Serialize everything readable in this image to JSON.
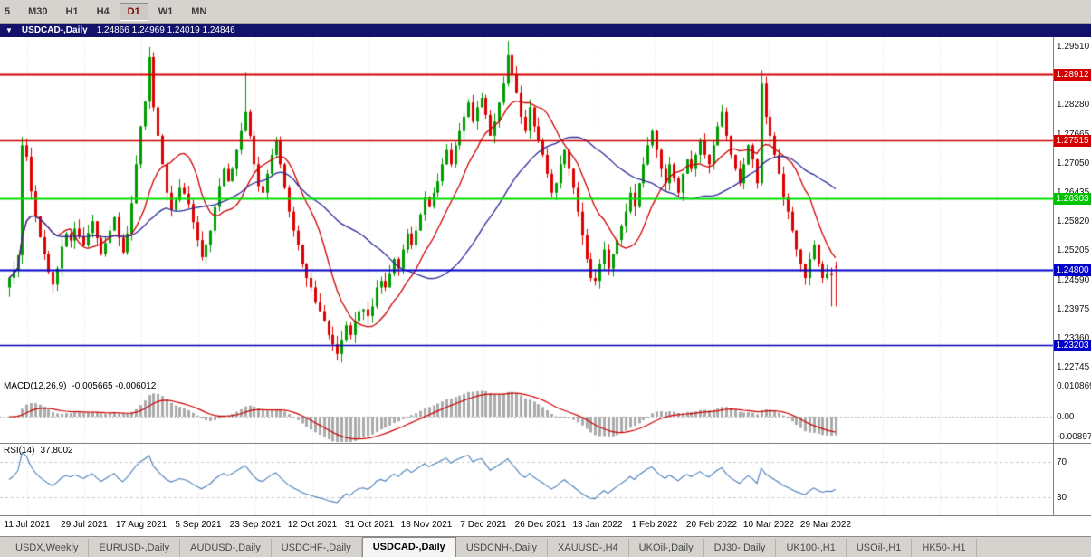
{
  "toolbar": {
    "timeframes": [
      {
        "label": "5",
        "active": false
      },
      {
        "label": "M30",
        "active": false
      },
      {
        "label": "H1",
        "active": false
      },
      {
        "label": "H4",
        "active": false
      },
      {
        "label": "D1",
        "active": true
      },
      {
        "label": "W1",
        "active": false
      },
      {
        "label": "MN",
        "active": false
      }
    ]
  },
  "chart_window": {
    "collapse_icon": "▼",
    "title": "USDCAD-,Daily",
    "ohlc_text": "1.24866 1.24969 1.24019 1.24846"
  },
  "price_axis": {
    "plain_labels": [
      "1.29510",
      "1.28280",
      "1.27665",
      "1.27050",
      "1.26435",
      "1.25820",
      "1.25205",
      "1.24590",
      "1.23975",
      "1.23360",
      "1.22745"
    ],
    "tagged_labels": [
      {
        "text": "1.28912",
        "color": "#d40000"
      },
      {
        "text": "1.27515",
        "color": "#d40000"
      },
      {
        "text": "1.26303",
        "color": "#00c400"
      },
      {
        "text": "1.24800",
        "color": "#0000c8"
      },
      {
        "text": "1.23203",
        "color": "#0000c8"
      }
    ]
  },
  "indicators": {
    "macd": {
      "name": "MACD(12,26,9)",
      "values": "-0.005665 -0.006012",
      "axis_labels": [
        "0.010869",
        "0.00",
        "-0.008974"
      ]
    },
    "rsi": {
      "name": "RSI(14)",
      "value": "37.8002",
      "levels": [
        70,
        30
      ],
      "axis_labels": [
        "70",
        "30"
      ]
    }
  },
  "date_axis": {
    "labels": [
      "11 Jul 2021",
      "29 Jul 2021",
      "17 Aug 2021",
      "5 Sep 2021",
      "23 Sep 2021",
      "12 Oct 2021",
      "31 Oct 2021",
      "18 Nov 2021",
      "7 Dec 2021",
      "26 Dec 2021",
      "13 Jan 2022",
      "1 Feb 2022",
      "20 Feb 2022",
      "10 Mar 2022",
      "29 Mar 2022"
    ]
  },
  "tabs": {
    "active_index": 4,
    "items": [
      "USDX,Weekly",
      "EURUSD-,Daily",
      "AUDUSD-,Daily",
      "USDCHF-,Daily",
      "USDCAD-,Daily",
      "USDCNH-,Daily",
      "XAUUSD-,H4",
      "UKOil-,Daily",
      "DJ30-,Daily",
      "UK100-,H1",
      "USOil-,H1",
      "HK50-,H1"
    ]
  },
  "chart_data": {
    "type": "candlestick",
    "symbol": "USDCAD-",
    "timeframe": "Daily",
    "title": "USDCAD-,Daily",
    "current_ohlc": {
      "open": 1.24866,
      "high": 1.24969,
      "low": 1.24019,
      "close": 1.24846
    },
    "y_min": 1.225,
    "y_max": 1.297,
    "up_color": "#009b00",
    "down_color": "#dd0000",
    "ma": [
      {
        "period": 12,
        "color": "#cc0000"
      },
      {
        "period": 34,
        "color": "#2a2a9a"
      }
    ],
    "h_lines": [
      {
        "price": 1.28912,
        "color": "#d40000",
        "width": 2
      },
      {
        "price": 1.27515,
        "color": "#c80000",
        "width": 1.5
      },
      {
        "price": 1.26303,
        "color": "#00dd00",
        "width": 2
      },
      {
        "price": 1.248,
        "color": "#0000c8",
        "width": 2
      },
      {
        "price": 1.23203,
        "color": "#0000b4",
        "width": 1.5
      }
    ],
    "macd_axis": {
      "max": 0.010869,
      "zero": 0.0,
      "min": -0.008974
    },
    "rsi_levels": [
      70,
      30
    ],
    "closes": [
      1.2462,
      1.2478,
      1.251,
      1.2742,
      1.2718,
      1.2645,
      1.2592,
      1.2548,
      1.2512,
      1.2475,
      1.2448,
      1.2482,
      1.2528,
      1.2556,
      1.2541,
      1.2566,
      1.2549,
      1.2531,
      1.2557,
      1.2582,
      1.2546,
      1.2512,
      1.2536,
      1.2562,
      1.259,
      1.2547,
      1.2516,
      1.2556,
      1.262,
      1.2702,
      1.2782,
      1.2834,
      1.2928,
      1.2822,
      1.2762,
      1.2702,
      1.2642,
      1.2606,
      1.2626,
      1.2652,
      1.264,
      1.2618,
      1.258,
      1.2542,
      1.2506,
      1.2532,
      1.2562,
      1.2612,
      1.2656,
      1.2692,
      1.2666,
      1.2692,
      1.2732,
      1.2772,
      1.2812,
      1.2762,
      1.2702,
      1.2656,
      1.2642,
      1.2682,
      1.2722,
      1.2752,
      1.2702,
      1.2652,
      1.2602,
      1.2562,
      1.2532,
      1.2492,
      1.2462,
      1.2442,
      1.2412,
      1.2392,
      1.2372,
      1.2342,
      1.2322,
      1.2302,
      1.2332,
      1.2362,
      1.2342,
      1.2372,
      1.2392,
      1.2396,
      1.2382,
      1.2402,
      1.2442,
      1.2456,
      1.2442,
      1.2472,
      1.2502,
      1.2482,
      1.2522,
      1.2556,
      1.2532,
      1.2562,
      1.2596,
      1.2632,
      1.2612,
      1.2642,
      1.2666,
      1.2702,
      1.2732,
      1.2702,
      1.2742,
      1.2772,
      1.2802,
      1.2832,
      1.2792,
      1.2822,
      1.2842,
      1.2806,
      1.2762,
      1.2792,
      1.2832,
      1.2872,
      1.2932,
      1.2892,
      1.2852,
      1.2802,
      1.2772,
      1.2822,
      1.2782,
      1.2752,
      1.2722,
      1.2682,
      1.2642,
      1.2662,
      1.2702,
      1.2732,
      1.2692,
      1.2652,
      1.2602,
      1.2552,
      1.2502,
      1.2462,
      1.2456,
      1.2492,
      1.2522,
      1.2482,
      1.2512,
      1.2542,
      1.2572,
      1.2602,
      1.2642,
      1.2612,
      1.2662,
      1.2702,
      1.2742,
      1.2772,
      1.2732,
      1.2692,
      1.2662,
      1.2702,
      1.2672,
      1.2642,
      1.2682,
      1.2712,
      1.2692,
      1.2722,
      1.2752,
      1.2722,
      1.2702,
      1.2742,
      1.2782,
      1.2812,
      1.2762,
      1.2722,
      1.2692,
      1.2662,
      1.2702,
      1.2742,
      1.2712,
      1.2662,
      1.2872,
      1.2802,
      1.2762,
      1.2722,
      1.2682,
      1.2632,
      1.2602,
      1.2562,
      1.2522,
      1.2492,
      1.2462,
      1.2502,
      1.2532,
      1.2492,
      1.2462,
      1.2472,
      1.2468,
      1.2485
    ],
    "wick_overrides": {
      "32": {
        "high": 1.2949
      },
      "54": {
        "high": 1.2895
      },
      "75": {
        "low": 1.2288
      },
      "114": {
        "high": 1.2962
      },
      "172": {
        "high": 1.2901
      },
      "188": {
        "low": 1.2402
      }
    }
  }
}
